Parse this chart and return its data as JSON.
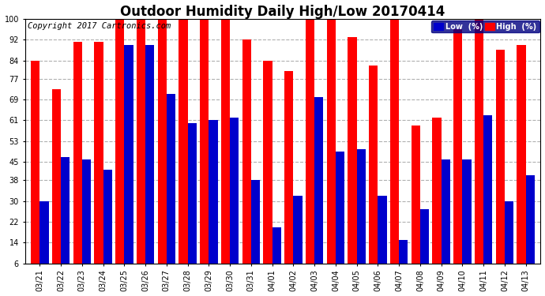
{
  "title": "Outdoor Humidity Daily High/Low 20170414",
  "copyright": "Copyright 2017 Cartronics.com",
  "legend_low": "Low  (%)",
  "legend_high": "High  (%)",
  "categories": [
    "03/21",
    "03/22",
    "03/23",
    "03/24",
    "03/25",
    "03/26",
    "03/27",
    "03/28",
    "03/29",
    "03/30",
    "03/31",
    "04/01",
    "04/02",
    "04/03",
    "04/04",
    "04/05",
    "04/06",
    "04/07",
    "04/08",
    "04/09",
    "04/10",
    "04/11",
    "04/12",
    "04/13"
  ],
  "high_values": [
    84,
    73,
    91,
    91,
    100,
    100,
    100,
    100,
    100,
    100,
    92,
    84,
    80,
    100,
    100,
    93,
    82,
    100,
    59,
    62,
    96,
    100,
    88,
    90
  ],
  "low_values": [
    30,
    47,
    46,
    42,
    90,
    90,
    71,
    60,
    61,
    62,
    38,
    20,
    32,
    70,
    49,
    50,
    32,
    15,
    27,
    46,
    46,
    63,
    30,
    40
  ],
  "bar_color_high": "#ff0000",
  "bar_color_low": "#0000cc",
  "background_color": "#ffffff",
  "grid_color": "#b0b0b0",
  "ylim_min": 6,
  "ylim_max": 100,
  "yticks": [
    6,
    14,
    22,
    30,
    38,
    45,
    53,
    61,
    69,
    77,
    84,
    92,
    100
  ],
  "title_fontsize": 12,
  "copyright_fontsize": 7.5,
  "tick_fontsize": 7,
  "bar_width": 0.42
}
